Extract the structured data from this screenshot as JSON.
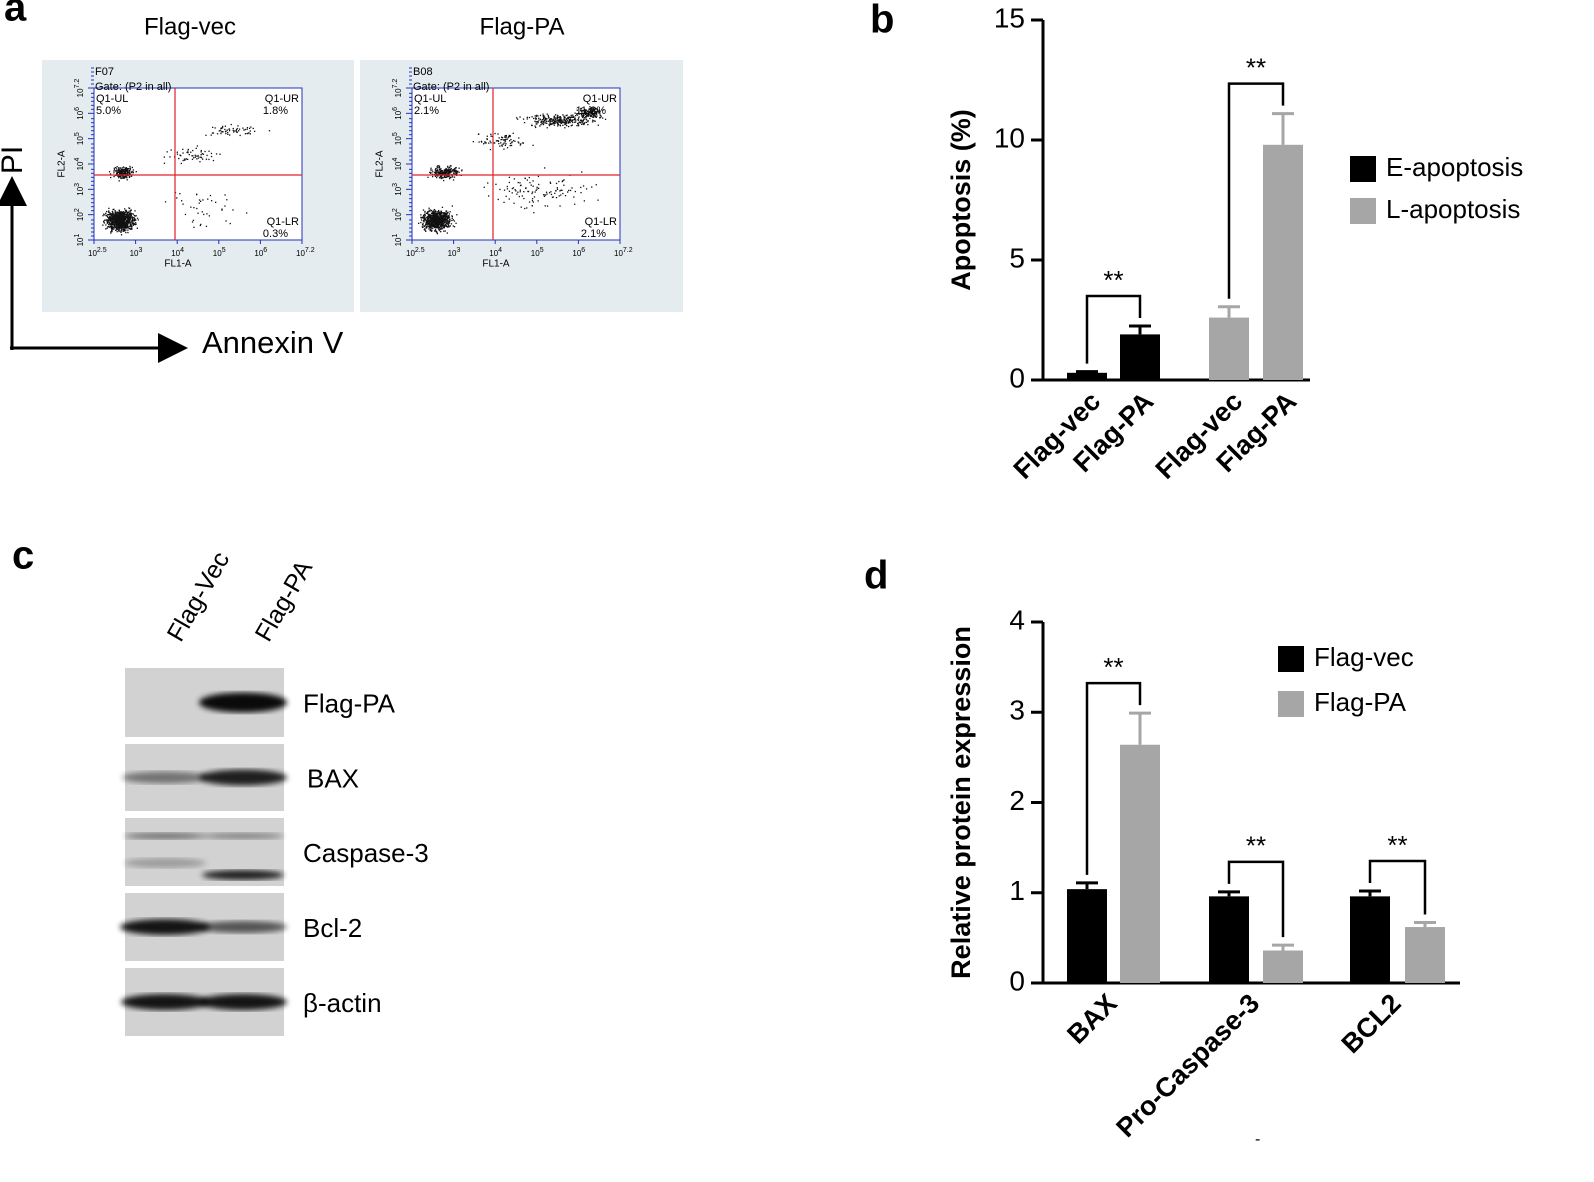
{
  "panel_a": {
    "label": "a",
    "y_axis": "PI",
    "x_axis": "Annexin V",
    "tick_base": "10",
    "x_tick_exps": [
      "2.5",
      "3",
      "4",
      "5",
      "6",
      "7.2"
    ],
    "y_tick_exps": [
      "1",
      "2",
      "3",
      "4",
      "5",
      "6",
      "7.2"
    ],
    "plot_y_label": "FL2-A",
    "plot_x_label": "FL1-A",
    "plots": [
      {
        "title": "Flag-vec",
        "sample": "F07",
        "gate": "Gate: (P2 in all)",
        "ul": "Q1-UL",
        "ul_pct": "5.0%",
        "ur": "Q1-UR",
        "ur_pct": "1.8%",
        "lr": "Q1-LR",
        "lr_pct": "0.3%"
      },
      {
        "title": "Flag-PA",
        "sample": "B08",
        "gate": "Gate: (P2 in all)",
        "ul": "Q1-UL",
        "ul_pct": "2.1%",
        "ur": "Q1-UR",
        "ur_pct": "11.2%",
        "lr": "Q1-LR",
        "lr_pct": "2.1%"
      }
    ]
  },
  "panel_c": {
    "label": "c",
    "lanes": [
      "Flag-Vec",
      "Flag-PA"
    ],
    "rows": [
      "Flag-PA",
      "BAX",
      "Caspase-3",
      "Bcl-2",
      "β-actin"
    ]
  },
  "chart_data": [
    {
      "type": "bar",
      "label": "b",
      "y_label": "Apoptosis (%)",
      "categories": [
        "Flag-vec",
        "Flag-PA",
        "Flag-vec",
        "Flag-PA"
      ],
      "series": [
        {
          "name": "E-apoptosis",
          "color": "#000000",
          "values": [
            0.3,
            1.9,
            null,
            null
          ],
          "errors": [
            0.05,
            0.35,
            null,
            null
          ]
        },
        {
          "name": "L-apoptosis",
          "color": "#a6a6a6",
          "values": [
            null,
            null,
            2.6,
            9.8
          ],
          "errors": [
            null,
            null,
            0.45,
            1.3
          ]
        }
      ],
      "annotations": [
        "**",
        "**"
      ],
      "ylim": [
        0,
        15
      ],
      "yticks": [
        0,
        5,
        10,
        15
      ]
    },
    {
      "type": "bar",
      "label": "d",
      "y_label": "Relative protein expression",
      "categories": [
        "BAX",
        "Pro-Caspase-3",
        "BCL2"
      ],
      "series": [
        {
          "name": "Flag-vec",
          "color": "#000000",
          "values": [
            1.04,
            0.96,
            0.96
          ],
          "errors": [
            0.07,
            0.05,
            0.06
          ]
        },
        {
          "name": "Flag-PA",
          "color": "#a6a6a6",
          "values": [
            2.64,
            0.36,
            0.62
          ],
          "errors": [
            0.35,
            0.06,
            0.05
          ]
        }
      ],
      "annotations": [
        "**",
        "**",
        "**"
      ],
      "footnote": "-",
      "ylim": [
        0,
        4
      ],
      "yticks": [
        0,
        1,
        2,
        3,
        4
      ]
    }
  ]
}
